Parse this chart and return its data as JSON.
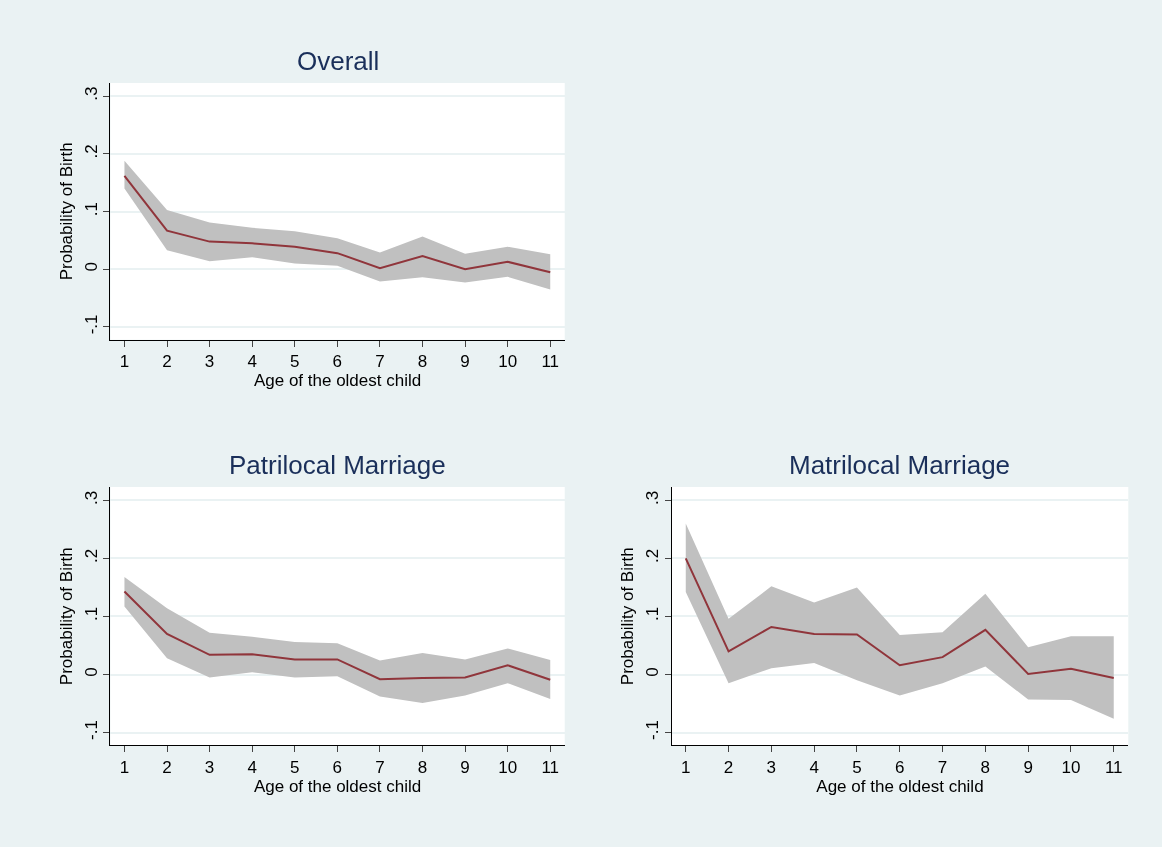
{
  "chart_data": [
    {
      "type": "line",
      "title": "Overall",
      "xlabel": "Age of the oldest child",
      "ylabel": "Probability of Birth",
      "x": [
        1,
        2,
        3,
        4,
        5,
        6,
        7,
        8,
        9,
        10,
        11
      ],
      "xlim": [
        0.67,
        11.34
      ],
      "ylim": [
        -0.122,
        0.323
      ],
      "xticks": [
        1,
        2,
        3,
        4,
        5,
        6,
        7,
        8,
        9,
        10,
        11
      ],
      "yticks": [
        {
          "value": -0.1,
          "label": "-.1"
        },
        0,
        {
          "value": 0.1,
          "label": ".1"
        },
        {
          "value": 0.2,
          "label": ".2"
        },
        {
          "value": 0.3,
          "label": ".3"
        }
      ],
      "grid": "y",
      "series": [
        {
          "color": "#90353b",
          "values": [
            0.162,
            0.067,
            0.048,
            0.045,
            0.039,
            0.028,
            0.002,
            0.023,
            0.0,
            0.013,
            -0.005
          ],
          "upper": [
            0.188,
            0.103,
            0.081,
            0.072,
            0.066,
            0.054,
            0.029,
            0.057,
            0.027,
            0.039,
            0.026
          ],
          "lower": [
            0.14,
            0.033,
            0.014,
            0.021,
            0.01,
            0.006,
            -0.021,
            -0.014,
            -0.023,
            -0.013,
            -0.035
          ]
        }
      ]
    },
    {
      "type": "line",
      "title": "Patrilocal Marriage",
      "xlabel": "Age of the oldest child",
      "ylabel": "Probability of Birth",
      "x": [
        1,
        2,
        3,
        4,
        5,
        6,
        7,
        8,
        9,
        10,
        11
      ],
      "xlim": [
        0.67,
        11.34
      ],
      "ylim": [
        -0.122,
        0.323
      ],
      "xticks": [
        1,
        2,
        3,
        4,
        5,
        6,
        7,
        8,
        9,
        10,
        11
      ],
      "yticks": [
        {
          "value": -0.1,
          "label": "-.1"
        },
        0,
        {
          "value": 0.1,
          "label": ".1"
        },
        {
          "value": 0.2,
          "label": ".2"
        },
        {
          "value": 0.3,
          "label": ".3"
        }
      ],
      "grid": "y",
      "series": [
        {
          "color": "#90353b",
          "values": [
            0.143,
            0.07,
            0.034,
            0.035,
            0.026,
            0.026,
            -0.008,
            -0.006,
            -0.005,
            0.016,
            -0.009
          ],
          "upper": [
            0.168,
            0.114,
            0.072,
            0.065,
            0.056,
            0.054,
            0.024,
            0.037,
            0.026,
            0.045,
            0.025
          ],
          "lower": [
            0.117,
            0.028,
            -0.005,
            0.004,
            -0.005,
            -0.003,
            -0.038,
            -0.049,
            -0.036,
            -0.015,
            -0.042
          ]
        }
      ]
    },
    {
      "type": "line",
      "title": "Matrilocal Marriage",
      "xlabel": "Age of the oldest child",
      "ylabel": "Probability of Birth",
      "x": [
        1,
        2,
        3,
        4,
        5,
        6,
        7,
        8,
        9,
        10,
        11
      ],
      "xlim": [
        0.67,
        11.34
      ],
      "ylim": [
        -0.122,
        0.323
      ],
      "xticks": [
        1,
        2,
        3,
        4,
        5,
        6,
        7,
        8,
        9,
        10,
        11
      ],
      "yticks": [
        {
          "value": -0.1,
          "label": "-.1"
        },
        0,
        {
          "value": 0.1,
          "label": ".1"
        },
        {
          "value": 0.2,
          "label": ".2"
        },
        {
          "value": 0.3,
          "label": ".3"
        }
      ],
      "grid": "y",
      "series": [
        {
          "color": "#90353b",
          "values": [
            0.2,
            0.04,
            0.082,
            0.07,
            0.069,
            0.016,
            0.03,
            0.077,
            0.001,
            0.01,
            -0.006
          ],
          "upper": [
            0.26,
            0.096,
            0.152,
            0.124,
            0.15,
            0.068,
            0.073,
            0.139,
            0.047,
            0.066,
            0.066
          ],
          "lower": [
            0.142,
            -0.015,
            0.011,
            0.02,
            -0.01,
            -0.036,
            -0.015,
            0.014,
            -0.043,
            -0.044,
            -0.076
          ]
        }
      ]
    }
  ]
}
